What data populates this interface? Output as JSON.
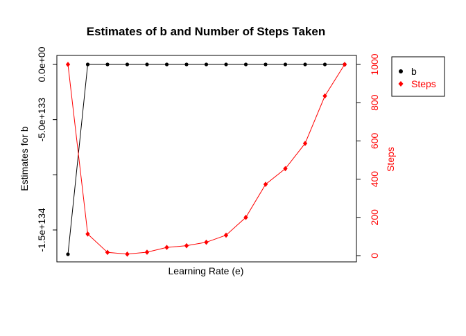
{
  "chart_data": {
    "type": "line",
    "title": "Estimates of b and Number of Steps Taken",
    "xlabel": "Learning Rate (e)",
    "ylabel_left": "Estimates for b",
    "ylabel_right": "Steps",
    "left_axis": {
      "ticks": [
        0,
        -5e+133,
        -1e+134,
        -1.5e+134
      ],
      "tick_labels": [
        "0.0e+00",
        "-5.0e+133",
        "",
        "-1.5e+134"
      ],
      "ylim": [
        -1.72e+134,
        0
      ]
    },
    "right_axis": {
      "ticks": [
        0,
        200,
        400,
        600,
        800,
        1000
      ],
      "tick_labels": [
        "0",
        "200",
        "400",
        "600",
        "800",
        "1000"
      ],
      "ylim": [
        0,
        1000
      ]
    },
    "x_count": 15,
    "series": [
      {
        "name": "b",
        "axis": "left",
        "color": "#000000",
        "marker": "circle",
        "values": [
          -1.72e+134,
          0,
          0,
          0,
          0,
          0,
          0,
          0,
          0,
          0,
          0,
          0,
          0,
          0,
          0
        ]
      },
      {
        "name": "Steps",
        "axis": "right",
        "color": "#ff0000",
        "marker": "diamond",
        "values": [
          1000,
          113,
          17,
          8,
          18,
          43,
          52,
          70,
          107,
          200,
          373,
          455,
          587,
          835,
          1000
        ]
      }
    ],
    "legend": {
      "position": "right",
      "entries": [
        "b",
        "Steps"
      ]
    }
  }
}
